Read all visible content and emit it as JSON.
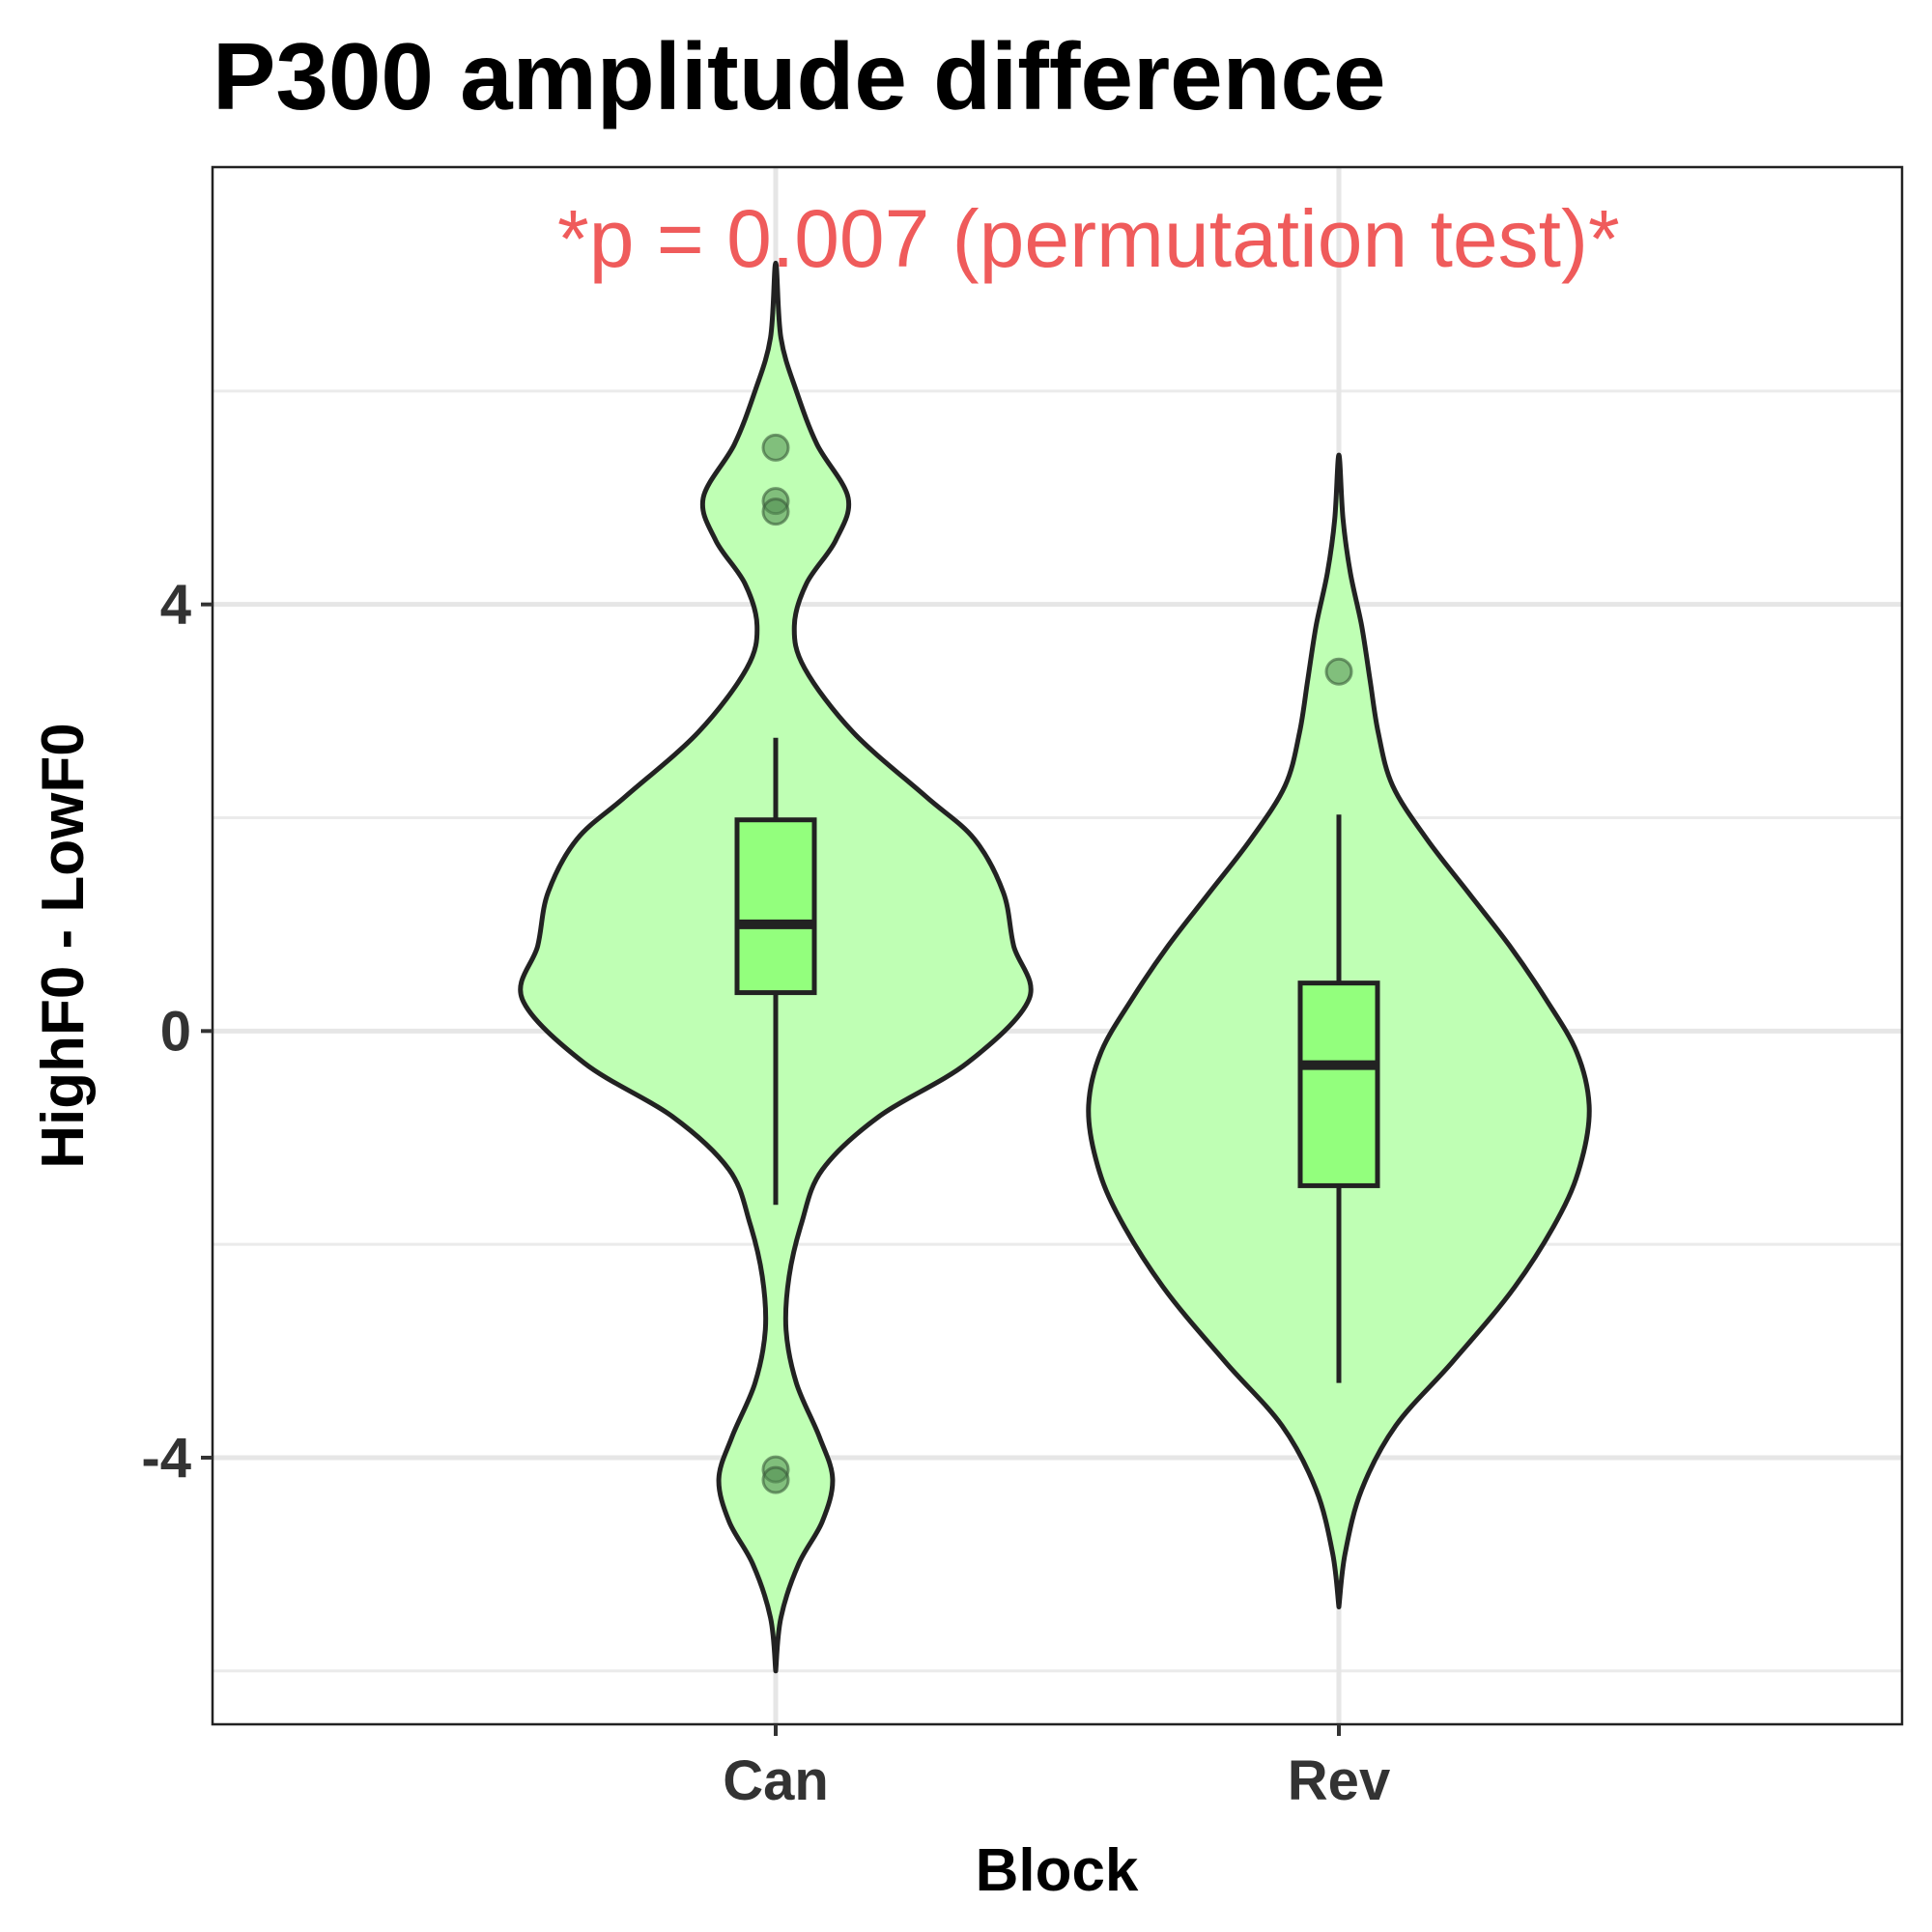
{
  "chart_data": {
    "type": "violin",
    "title": "P300 amplitude difference",
    "xlabel": "Block",
    "ylabel": "HighF0 - LowF0",
    "annotation": "*p = 0.007 (permutation test)*",
    "categories": [
      "Can",
      "Rev"
    ],
    "ylim": [
      -6.5,
      8.1
    ],
    "yticks": [
      -4,
      0,
      4
    ],
    "grid": true,
    "fill_color": "#bfffb4",
    "box_color": "#93ff7d",
    "outline_color": "#222222",
    "annotation_color": "#ef5b5b",
    "series": [
      {
        "category": "Can",
        "boxplot": {
          "whisker_low": -1.63,
          "q1": 0.36,
          "median": 1.0,
          "q3": 1.98,
          "whisker_high": 2.75
        },
        "outliers": [
          5.47,
          4.97,
          4.87,
          -4.11,
          -4.21
        ],
        "violin_range": [
          -6.0,
          7.2
        ],
        "density_profile": [
          [
            -6.0,
            0.0
          ],
          [
            -5.5,
            0.05
          ],
          [
            -5.0,
            0.22
          ],
          [
            -4.6,
            0.45
          ],
          [
            -4.2,
            0.55
          ],
          [
            -3.8,
            0.42
          ],
          [
            -3.3,
            0.2
          ],
          [
            -2.8,
            0.1
          ],
          [
            -2.3,
            0.13
          ],
          [
            -1.8,
            0.25
          ],
          [
            -1.3,
            0.45
          ],
          [
            -0.8,
            1.0
          ],
          [
            -0.3,
            1.85
          ],
          [
            0.3,
            2.45
          ],
          [
            0.8,
            2.3
          ],
          [
            1.3,
            2.2
          ],
          [
            1.8,
            1.92
          ],
          [
            2.2,
            1.45
          ],
          [
            2.8,
            0.75
          ],
          [
            3.4,
            0.28
          ],
          [
            3.8,
            0.18
          ],
          [
            4.2,
            0.3
          ],
          [
            4.6,
            0.58
          ],
          [
            5.0,
            0.7
          ],
          [
            5.5,
            0.4
          ],
          [
            6.0,
            0.2
          ],
          [
            6.5,
            0.05
          ],
          [
            7.2,
            0.0
          ]
        ]
      },
      {
        "category": "Rev",
        "boxplot": {
          "whisker_low": -3.3,
          "q1": -1.45,
          "median": -0.32,
          "q3": 0.45,
          "whisker_high": 2.03
        },
        "outliers": [
          3.37
        ],
        "violin_range": [
          -5.4,
          5.4
        ],
        "density_profile": [
          [
            -5.4,
            0.0
          ],
          [
            -4.9,
            0.06
          ],
          [
            -4.3,
            0.22
          ],
          [
            -3.7,
            0.55
          ],
          [
            -3.1,
            1.1
          ],
          [
            -2.4,
            1.7
          ],
          [
            -1.7,
            2.15
          ],
          [
            -1.2,
            2.35
          ],
          [
            -0.7,
            2.42
          ],
          [
            -0.2,
            2.3
          ],
          [
            0.3,
            2.0
          ],
          [
            0.8,
            1.65
          ],
          [
            1.3,
            1.25
          ],
          [
            1.8,
            0.85
          ],
          [
            2.3,
            0.52
          ],
          [
            2.8,
            0.38
          ],
          [
            3.3,
            0.3
          ],
          [
            3.8,
            0.22
          ],
          [
            4.3,
            0.11
          ],
          [
            4.8,
            0.04
          ],
          [
            5.4,
            0.0
          ]
        ]
      }
    ]
  }
}
